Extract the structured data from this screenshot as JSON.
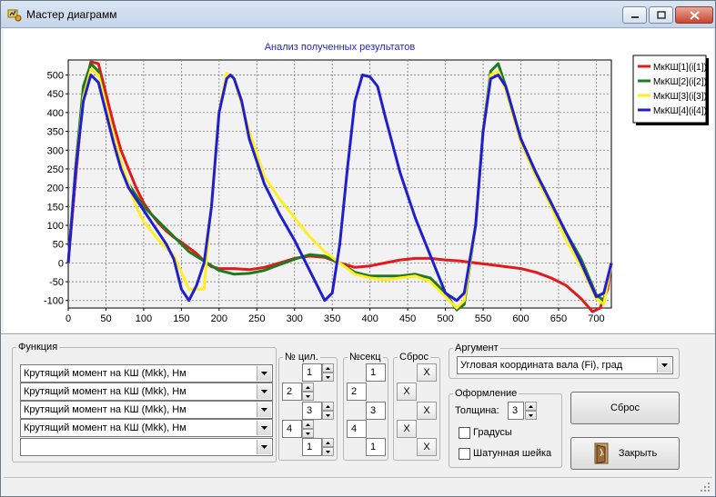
{
  "window": {
    "title": "Мастер диаграмм",
    "controls": {
      "minimize": "minimize",
      "maximize": "maximize",
      "close": "close"
    }
  },
  "chart_data": {
    "type": "line",
    "title": "Анализ полученных результатов",
    "xlabel": "",
    "ylabel": "",
    "xlim": [
      0,
      720
    ],
    "ylim": [
      -120,
      540
    ],
    "xticks": [
      0,
      50,
      100,
      150,
      200,
      250,
      300,
      350,
      400,
      450,
      500,
      550,
      600,
      650,
      700
    ],
    "yticks": [
      -100,
      -50,
      0,
      50,
      100,
      150,
      200,
      250,
      300,
      350,
      400,
      450,
      500
    ],
    "grid": true,
    "legend_position": "right",
    "series": [
      {
        "name": "МкКШ[1](i[1])",
        "color": "#e31a1c",
        "x": [
          0,
          10,
          20,
          30,
          40,
          50,
          60,
          70,
          80,
          90,
          100,
          110,
          120,
          130,
          140,
          150,
          160,
          170,
          180,
          190,
          200,
          220,
          240,
          260,
          280,
          300,
          320,
          340,
          360,
          380,
          400,
          420,
          440,
          460,
          480,
          500,
          520,
          540,
          560,
          580,
          600,
          620,
          640,
          660,
          680,
          695,
          705,
          715,
          720
        ],
        "y": [
          0,
          230,
          450,
          535,
          530,
          450,
          370,
          300,
          250,
          200,
          160,
          130,
          105,
          85,
          68,
          55,
          40,
          25,
          5,
          -10,
          -15,
          -15,
          -18,
          -12,
          0,
          12,
          18,
          15,
          0,
          -12,
          -8,
          0,
          8,
          12,
          12,
          8,
          5,
          0,
          -5,
          -10,
          -15,
          -25,
          -40,
          -60,
          -95,
          -130,
          -120,
          -70,
          0
        ]
      },
      {
        "name": "МкКШ[2](i[2])",
        "color": "#1f7a1f",
        "x": [
          0,
          10,
          20,
          30,
          40,
          50,
          60,
          70,
          80,
          90,
          100,
          120,
          140,
          160,
          180,
          200,
          220,
          240,
          260,
          280,
          300,
          320,
          340,
          360,
          380,
          400,
          420,
          440,
          460,
          480,
          500,
          515,
          525,
          540,
          550,
          560,
          570,
          580,
          600,
          620,
          640,
          660,
          680,
          700,
          710,
          720
        ],
        "y": [
          0,
          260,
          470,
          530,
          510,
          420,
          330,
          260,
          210,
          180,
          150,
          110,
          70,
          30,
          5,
          -20,
          -30,
          -28,
          -20,
          -5,
          10,
          22,
          18,
          0,
          -25,
          -35,
          -35,
          -35,
          -30,
          -40,
          -80,
          -125,
          -110,
          100,
          350,
          510,
          530,
          470,
          330,
          240,
          160,
          80,
          10,
          -85,
          -100,
          0
        ]
      },
      {
        "name": "МкКШ[3](i[3])",
        "color": "#ffee22",
        "x": [
          0,
          10,
          20,
          30,
          40,
          50,
          60,
          70,
          80,
          90,
          100,
          120,
          140,
          160,
          180,
          200,
          210,
          220,
          240,
          260,
          280,
          300,
          320,
          340,
          360,
          380,
          400,
          420,
          440,
          460,
          480,
          500,
          515,
          525,
          540,
          550,
          560,
          570,
          580,
          600,
          620,
          640,
          660,
          680,
          700,
          710,
          720
        ],
        "y": [
          0,
          250,
          440,
          515,
          500,
          420,
          340,
          270,
          210,
          150,
          110,
          60,
          20,
          -70,
          -70,
          400,
          505,
          490,
          350,
          230,
          170,
          120,
          70,
          30,
          0,
          -30,
          -40,
          -45,
          -40,
          -35,
          -50,
          -90,
          -120,
          -100,
          100,
          350,
          500,
          510,
          460,
          320,
          230,
          150,
          60,
          -10,
          -95,
          -110,
          0
        ]
      },
      {
        "name": "МкКШ[4](i[4])",
        "color": "#1f1fd0",
        "x": [
          0,
          10,
          20,
          30,
          40,
          50,
          60,
          70,
          80,
          90,
          100,
          110,
          120,
          130,
          140,
          150,
          160,
          170,
          180,
          190,
          200,
          210,
          215,
          220,
          230,
          240,
          260,
          280,
          300,
          320,
          340,
          350,
          360,
          370,
          380,
          390,
          400,
          410,
          420,
          440,
          460,
          480,
          500,
          515,
          525,
          540,
          550,
          560,
          570,
          580,
          600,
          620,
          640,
          660,
          680,
          700,
          710,
          720
        ],
        "y": [
          0,
          250,
          430,
          500,
          480,
          400,
          320,
          250,
          200,
          170,
          140,
          110,
          80,
          50,
          10,
          -70,
          -100,
          -60,
          0,
          150,
          400,
          490,
          500,
          490,
          430,
          330,
          210,
          130,
          60,
          -20,
          -100,
          -80,
          50,
          250,
          430,
          500,
          495,
          470,
          390,
          240,
          120,
          20,
          -80,
          -100,
          -80,
          100,
          350,
          490,
          500,
          470,
          330,
          240,
          160,
          80,
          0,
          -90,
          -80,
          0
        ]
      }
    ]
  },
  "controls": {
    "function_group": {
      "title": "Функция",
      "rows": [
        {
          "value": "Крутящий момент на КШ (Mkk), Нм"
        },
        {
          "value": "Крутящий момент на КШ (Mkk), Нм"
        },
        {
          "value": "Крутящий момент на КШ (Mkk), Нм"
        },
        {
          "value": "Крутящий момент на КШ (Mkk), Нм"
        },
        {
          "value": ""
        }
      ]
    },
    "cyl_group": {
      "title": "№ цил.",
      "values": [
        "1",
        "2",
        "3",
        "4",
        "1"
      ]
    },
    "sec_group": {
      "title": "№секц",
      "values": [
        "1",
        "2",
        "3",
        "4",
        "1"
      ]
    },
    "reset_group": {
      "title": "Сброс",
      "button": "X"
    },
    "argument_group": {
      "title": "Аргумент",
      "selected": "Угловая координата вала (Fi), град"
    },
    "appearance_group": {
      "title": "Оформление",
      "thickness_label": "Толщина:",
      "thickness_value": "3",
      "degrees_label": "Градусы",
      "crank_label": "Шатунная шейка"
    },
    "reset_button": "Сброс",
    "close_button": "Закрыть"
  }
}
